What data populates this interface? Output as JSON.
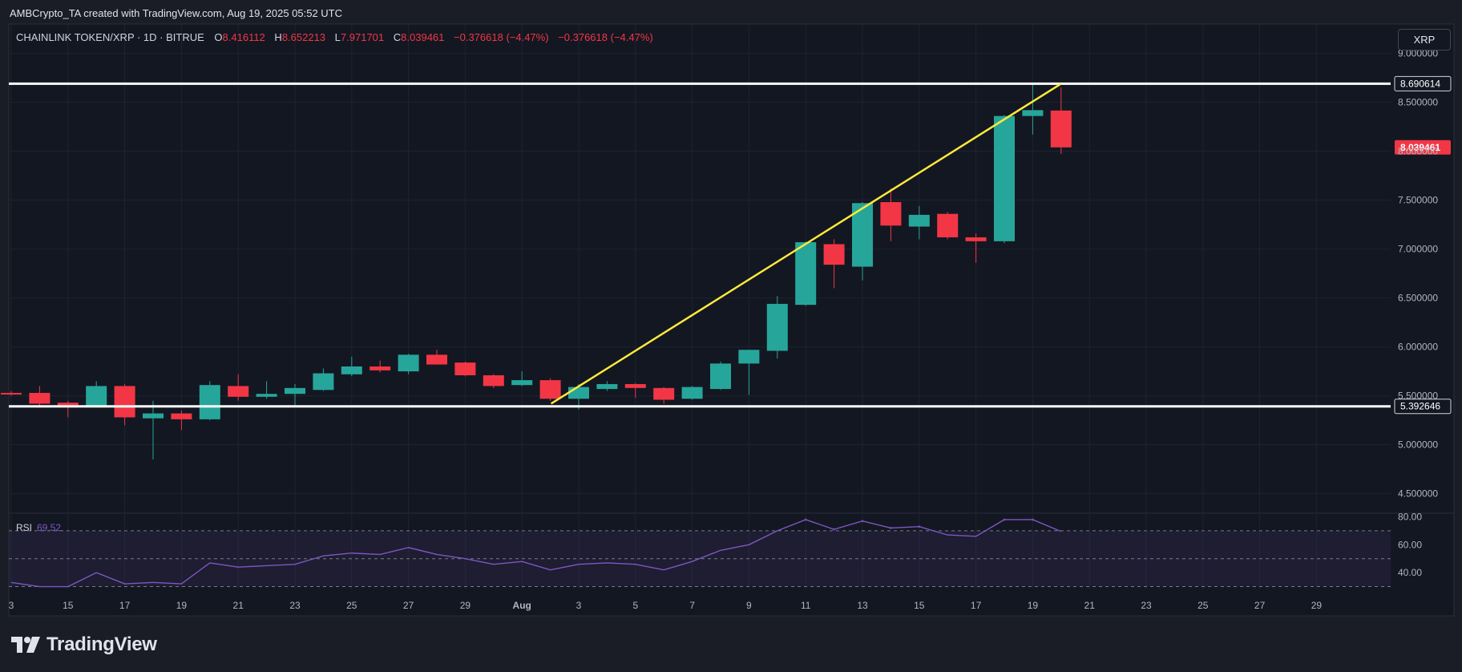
{
  "header": {
    "attribution": "AMBCrypto_TA created with TradingView.com, Aug 19, 2025 05:52 UTC"
  },
  "legend": {
    "symbol": "CHAINLINK TOKEN/XRP · 1D · BITRUE",
    "o_label": "O",
    "o_value": "8.416112",
    "h_label": "H",
    "h_value": "8.652213",
    "l_label": "L",
    "l_value": "7.971701",
    "c_label": "C",
    "c_value": "8.039461",
    "change1": "−0.376618 (−4.47%)",
    "change2": "−0.376618 (−4.47%)"
  },
  "symbol_badge": "XRP",
  "footer": {
    "brand": "TradingView"
  },
  "colors": {
    "up": "#26a69a",
    "down": "#f23645",
    "trend": "#ffeb3b",
    "level": "#ffffff",
    "rsi": "#7e57c2",
    "price_tag": "#f23645"
  },
  "chart_data": [
    {
      "type": "candlestick",
      "title": "CHAINLINK TOKEN/XRP · 1D · BITRUE",
      "ylim": [
        4.3,
        9.3
      ],
      "y_ticks": [
        "4.500000",
        "5.000000",
        "5.500000",
        "6.000000",
        "6.500000",
        "7.000000",
        "7.500000",
        "8.000000",
        "8.500000",
        "9.000000"
      ],
      "x_ticks": [
        "3",
        "15",
        "17",
        "19",
        "21",
        "23",
        "25",
        "27",
        "29",
        "Aug",
        "3",
        "5",
        "7",
        "9",
        "11",
        "13",
        "15",
        "17",
        "19",
        "21",
        "23",
        "25",
        "27",
        "29"
      ],
      "candles": [
        {
          "date": "Jul 13",
          "o": 5.53,
          "h": 5.55,
          "l": 5.5,
          "c": 5.52
        },
        {
          "date": "Jul 14",
          "o": 5.53,
          "h": 5.6,
          "l": 5.38,
          "c": 5.42
        },
        {
          "date": "Jul 15",
          "o": 5.43,
          "h": 5.45,
          "l": 5.28,
          "c": 5.4
        },
        {
          "date": "Jul 16",
          "o": 5.4,
          "h": 5.65,
          "l": 5.38,
          "c": 5.6
        },
        {
          "date": "Jul 17",
          "o": 5.6,
          "h": 5.62,
          "l": 5.2,
          "c": 5.28
        },
        {
          "date": "Jul 18",
          "o": 5.27,
          "h": 5.45,
          "l": 4.85,
          "c": 5.32
        },
        {
          "date": "Jul 19",
          "o": 5.32,
          "h": 5.35,
          "l": 5.15,
          "c": 5.26
        },
        {
          "date": "Jul 20",
          "o": 5.26,
          "h": 5.65,
          "l": 5.25,
          "c": 5.61
        },
        {
          "date": "Jul 21",
          "o": 5.6,
          "h": 5.72,
          "l": 5.45,
          "c": 5.49
        },
        {
          "date": "Jul 22",
          "o": 5.49,
          "h": 5.65,
          "l": 5.47,
          "c": 5.52
        },
        {
          "date": "Jul 23",
          "o": 5.52,
          "h": 5.62,
          "l": 5.4,
          "c": 5.58
        },
        {
          "date": "Jul 24",
          "o": 5.56,
          "h": 5.78,
          "l": 5.55,
          "c": 5.73
        },
        {
          "date": "Jul 25",
          "o": 5.72,
          "h": 5.9,
          "l": 5.7,
          "c": 5.8
        },
        {
          "date": "Jul 26",
          "o": 5.8,
          "h": 5.86,
          "l": 5.74,
          "c": 5.76
        },
        {
          "date": "Jul 27",
          "o": 5.75,
          "h": 5.93,
          "l": 5.72,
          "c": 5.92
        },
        {
          "date": "Jul 28",
          "o": 5.92,
          "h": 5.97,
          "l": 5.82,
          "c": 5.82
        },
        {
          "date": "Jul 29",
          "o": 5.84,
          "h": 5.85,
          "l": 5.7,
          "c": 5.71
        },
        {
          "date": "Jul 30",
          "o": 5.71,
          "h": 5.72,
          "l": 5.58,
          "c": 5.6
        },
        {
          "date": "Jul 31",
          "o": 5.61,
          "h": 5.75,
          "l": 5.6,
          "c": 5.66
        },
        {
          "date": "Aug 1",
          "o": 5.66,
          "h": 5.68,
          "l": 5.45,
          "c": 5.47
        },
        {
          "date": "Aug 2",
          "o": 5.47,
          "h": 5.62,
          "l": 5.36,
          "c": 5.59
        },
        {
          "date": "Aug 3",
          "o": 5.57,
          "h": 5.65,
          "l": 5.55,
          "c": 5.62
        },
        {
          "date": "Aug 4",
          "o": 5.62,
          "h": 5.63,
          "l": 5.48,
          "c": 5.58
        },
        {
          "date": "Aug 5",
          "o": 5.58,
          "h": 5.59,
          "l": 5.42,
          "c": 5.46
        },
        {
          "date": "Aug 6",
          "o": 5.47,
          "h": 5.6,
          "l": 5.46,
          "c": 5.59
        },
        {
          "date": "Aug 7",
          "o": 5.57,
          "h": 5.85,
          "l": 5.56,
          "c": 5.83
        },
        {
          "date": "Aug 8",
          "o": 5.83,
          "h": 5.97,
          "l": 5.51,
          "c": 5.97
        },
        {
          "date": "Aug 9",
          "o": 5.96,
          "h": 6.52,
          "l": 5.88,
          "c": 6.44
        },
        {
          "date": "Aug 10",
          "o": 6.43,
          "h": 7.08,
          "l": 6.42,
          "c": 7.07
        },
        {
          "date": "Aug 11",
          "o": 7.05,
          "h": 7.1,
          "l": 6.6,
          "c": 6.84
        },
        {
          "date": "Aug 12",
          "o": 6.82,
          "h": 7.48,
          "l": 6.68,
          "c": 7.47
        },
        {
          "date": "Aug 13",
          "o": 7.48,
          "h": 7.62,
          "l": 7.08,
          "c": 7.24
        },
        {
          "date": "Aug 14",
          "o": 7.23,
          "h": 7.44,
          "l": 7.1,
          "c": 7.35
        },
        {
          "date": "Aug 15",
          "o": 7.36,
          "h": 7.38,
          "l": 7.1,
          "c": 7.12
        },
        {
          "date": "Aug 16",
          "o": 7.12,
          "h": 7.16,
          "l": 6.86,
          "c": 7.08
        },
        {
          "date": "Aug 17",
          "o": 7.08,
          "h": 8.37,
          "l": 7.06,
          "c": 8.36
        },
        {
          "date": "Aug 18",
          "o": 8.36,
          "h": 8.68,
          "l": 8.17,
          "c": 8.42
        },
        {
          "date": "Aug 19",
          "o": 8.416112,
          "h": 8.652213,
          "l": 7.971701,
          "c": 8.039461
        }
      ],
      "levels": [
        {
          "label": "8.690614",
          "value": 8.690614
        },
        {
          "label": "5.392646",
          "value": 5.392646
        }
      ],
      "last_price": {
        "label": "8.039461",
        "value": 8.039461
      },
      "trendline": {
        "start": {
          "date": "Aug 1",
          "value": 5.42
        },
        "end": {
          "date": "Aug 19",
          "value": 8.69
        }
      }
    },
    {
      "type": "line",
      "title": "RSI",
      "label": "RSI",
      "value_label": "69.52",
      "ylim": [
        28,
        82
      ],
      "y_ticks": [
        "80.00",
        "60.00",
        "40.00"
      ],
      "bands": {
        "upper": 70,
        "middle": 50,
        "lower": 30
      },
      "values": [
        33,
        30,
        30,
        40,
        32,
        33,
        32,
        47,
        44,
        45,
        46,
        52,
        54,
        53,
        58,
        53,
        50,
        46,
        48,
        42,
        46,
        47,
        46,
        42,
        48,
        56,
        60,
        70,
        78,
        71,
        77,
        72,
        73,
        67,
        66,
        78,
        78,
        69.52
      ]
    }
  ]
}
